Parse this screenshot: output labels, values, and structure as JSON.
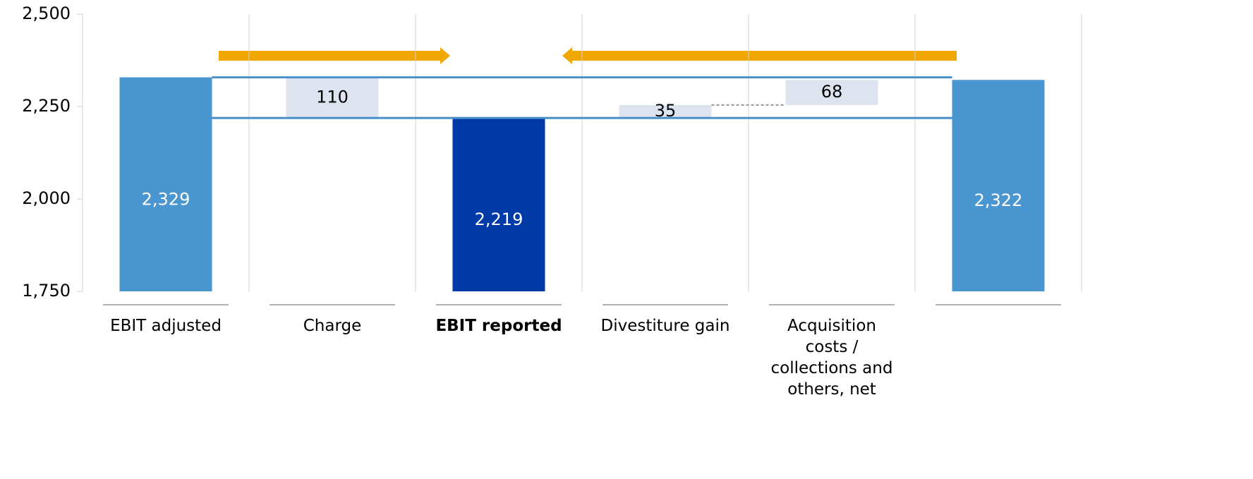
{
  "chart_data": {
    "type": "waterfall",
    "categories": [
      "EBIT adjusted",
      "Charge",
      "EBIT reported",
      "Divestiture gain",
      "Acquisition costs / collections and others, net",
      null
    ],
    "values": [
      2329,
      110,
      2219,
      35,
      68,
      2322
    ],
    "value_labels": [
      "2,329",
      "110",
      "2,219",
      "35",
      "68",
      "2,322"
    ],
    "measures": [
      "total",
      "decrease",
      "total",
      "increase",
      "increase",
      "total"
    ],
    "colors": [
      "#4a96d0",
      "#dde4ef",
      "#003aa6",
      "#dde4ef",
      "#dde4ef",
      "#4a96d0"
    ],
    "label_colors": [
      "#ffffff",
      "#000000",
      "#ffffff",
      "#000000",
      "#000000",
      "#ffffff"
    ],
    "ylim": [
      1750,
      2500
    ],
    "yticks": [
      {
        "value": 1750,
        "label": "1,750"
      },
      {
        "value": 2000,
        "label": "2,000"
      },
      {
        "value": 2250,
        "label": "2,250"
      },
      {
        "value": 2500,
        "label": "2,500"
      }
    ],
    "grid": true
  }
}
